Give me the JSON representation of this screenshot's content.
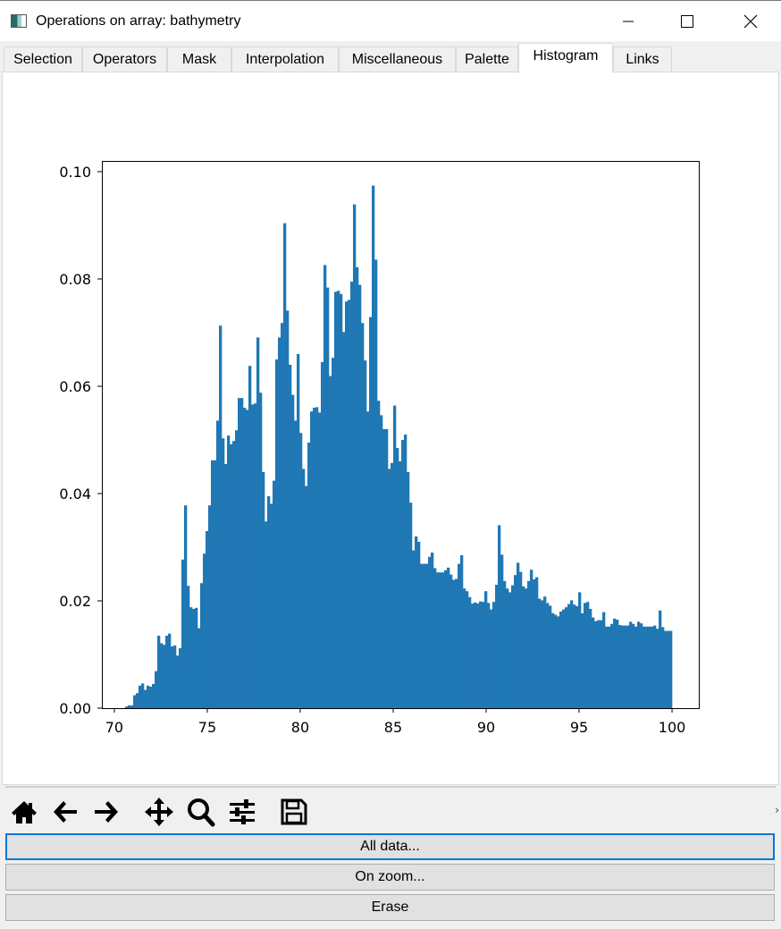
{
  "window": {
    "title": "Operations on array: bathymetry",
    "minimize_icon": "minimize-icon",
    "maximize_icon": "maximize-icon",
    "close_icon": "close-icon"
  },
  "tabs": [
    {
      "label": "Selection"
    },
    {
      "label": "Operators"
    },
    {
      "label": "Mask"
    },
    {
      "label": "Interpolation"
    },
    {
      "label": "Miscellaneous"
    },
    {
      "label": "Palette"
    },
    {
      "label": "Histogram",
      "active": true
    },
    {
      "label": "Links"
    }
  ],
  "toolbar": {
    "icons": [
      "home-icon",
      "back-arrow-icon",
      "forward-arrow-icon",
      "pan-icon",
      "zoom-icon",
      "configure-subplots-icon",
      "save-icon"
    ]
  },
  "buttons": {
    "all_data": "All data...",
    "on_zoom": "On zoom...",
    "erase": "Erase"
  },
  "colors": {
    "bar": "#1f77b4",
    "focus_border": "#0078d7"
  },
  "chart_data": {
    "type": "bar",
    "subtype": "histogram",
    "title": "",
    "xlabel": "",
    "ylabel": "",
    "xlim": [
      69.33,
      101.44
    ],
    "ylim": [
      0,
      0.102
    ],
    "x_range": [
      70.58,
      100
    ],
    "xticks": [
      "70",
      "75",
      "80",
      "85",
      "90",
      "95",
      "100"
    ],
    "yticks": [
      "0.00",
      "0.02",
      "0.04",
      "0.06",
      "0.08",
      "0.10"
    ],
    "grid": false,
    "values": [
      0.0003,
      0.0005,
      0.0005,
      0.0024,
      0.0028,
      0.0042,
      0.0046,
      0.0034,
      0.0042,
      0.004,
      0.0045,
      0.0069,
      0.0135,
      0.0121,
      0.0118,
      0.0135,
      0.0139,
      0.0115,
      0.0117,
      0.0098,
      0.0112,
      0.0277,
      0.0378,
      0.0228,
      0.0188,
      0.0185,
      0.0187,
      0.0149,
      0.0233,
      0.0288,
      0.033,
      0.0378,
      0.0462,
      0.0462,
      0.0536,
      0.0713,
      0.0503,
      0.0455,
      0.0508,
      0.0492,
      0.0498,
      0.0518,
      0.0578,
      0.0578,
      0.056,
      0.0556,
      0.0638,
      0.0566,
      0.0568,
      0.0691,
      0.0588,
      0.044,
      0.0348,
      0.0395,
      0.0381,
      0.0424,
      0.065,
      0.0691,
      0.0718,
      0.0904,
      0.0741,
      0.064,
      0.0584,
      0.0536,
      0.066,
      0.0513,
      0.0446,
      0.0414,
      0.0495,
      0.0553,
      0.056,
      0.0561,
      0.0551,
      0.0645,
      0.0826,
      0.0784,
      0.0619,
      0.0653,
      0.0776,
      0.0778,
      0.0772,
      0.0701,
      0.0758,
      0.0761,
      0.0795,
      0.0939,
      0.0822,
      0.0789,
      0.0718,
      0.0648,
      0.0553,
      0.0729,
      0.0974,
      0.0836,
      0.0573,
      0.0546,
      0.052,
      0.052,
      0.0446,
      0.0457,
      0.0564,
      0.0485,
      0.046,
      0.05,
      0.051,
      0.044,
      0.0383,
      0.0294,
      0.032,
      0.031,
      0.0269,
      0.0269,
      0.0269,
      0.0282,
      0.029,
      0.0261,
      0.0253,
      0.0253,
      0.0253,
      0.0257,
      0.0262,
      0.0249,
      0.0239,
      0.0241,
      0.0269,
      0.0285,
      0.0223,
      0.0218,
      0.0207,
      0.0195,
      0.0197,
      0.0195,
      0.0199,
      0.0198,
      0.0218,
      0.0196,
      0.0184,
      0.0198,
      0.023,
      0.0341,
      0.0286,
      0.0237,
      0.0223,
      0.0216,
      0.0229,
      0.0248,
      0.0271,
      0.0254,
      0.0227,
      0.0223,
      0.0237,
      0.0258,
      0.024,
      0.0244,
      0.0204,
      0.0201,
      0.0208,
      0.0196,
      0.0191,
      0.0177,
      0.0174,
      0.0171,
      0.018,
      0.0184,
      0.0188,
      0.0194,
      0.0201,
      0.0193,
      0.019,
      0.0216,
      0.0177,
      0.0196,
      0.0198,
      0.0185,
      0.0169,
      0.0162,
      0.0164,
      0.0164,
      0.0179,
      0.0152,
      0.0152,
      0.0157,
      0.0167,
      0.0165,
      0.0155,
      0.0154,
      0.0154,
      0.0154,
      0.0161,
      0.0157,
      0.0152,
      0.0161,
      0.0158,
      0.0152,
      0.0152,
      0.0152,
      0.0152,
      0.0154,
      0.0148,
      0.0182,
      0.0151,
      0.0144,
      0.0144,
      0.0144
    ]
  }
}
